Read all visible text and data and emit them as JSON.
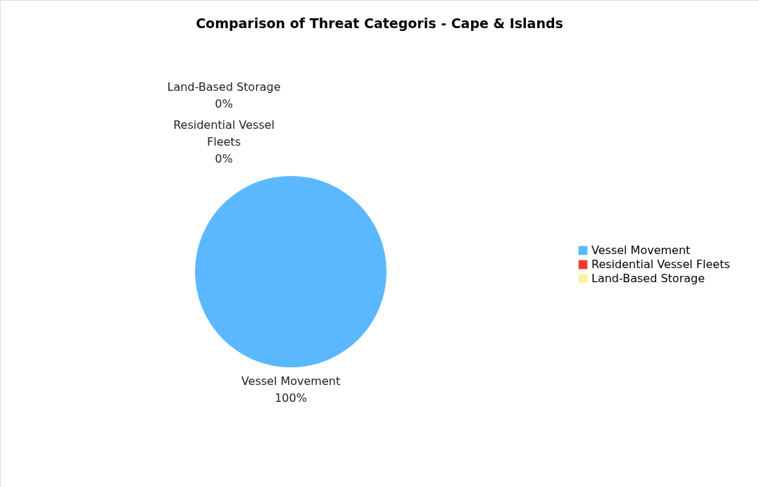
{
  "chart_data": {
    "type": "pie",
    "title": "Comparison of Threat Categoris - Cape & Islands",
    "categories": [
      "Vessel Movement",
      "Residential Vessel Fleets",
      "Land-Based Storage"
    ],
    "values": [
      100,
      0,
      0
    ],
    "colors": [
      "#5bb8fe",
      "#f03c2e",
      "#f8f3a0"
    ],
    "value_labels": [
      "100%",
      "0%",
      "0%"
    ],
    "legend": "right"
  }
}
